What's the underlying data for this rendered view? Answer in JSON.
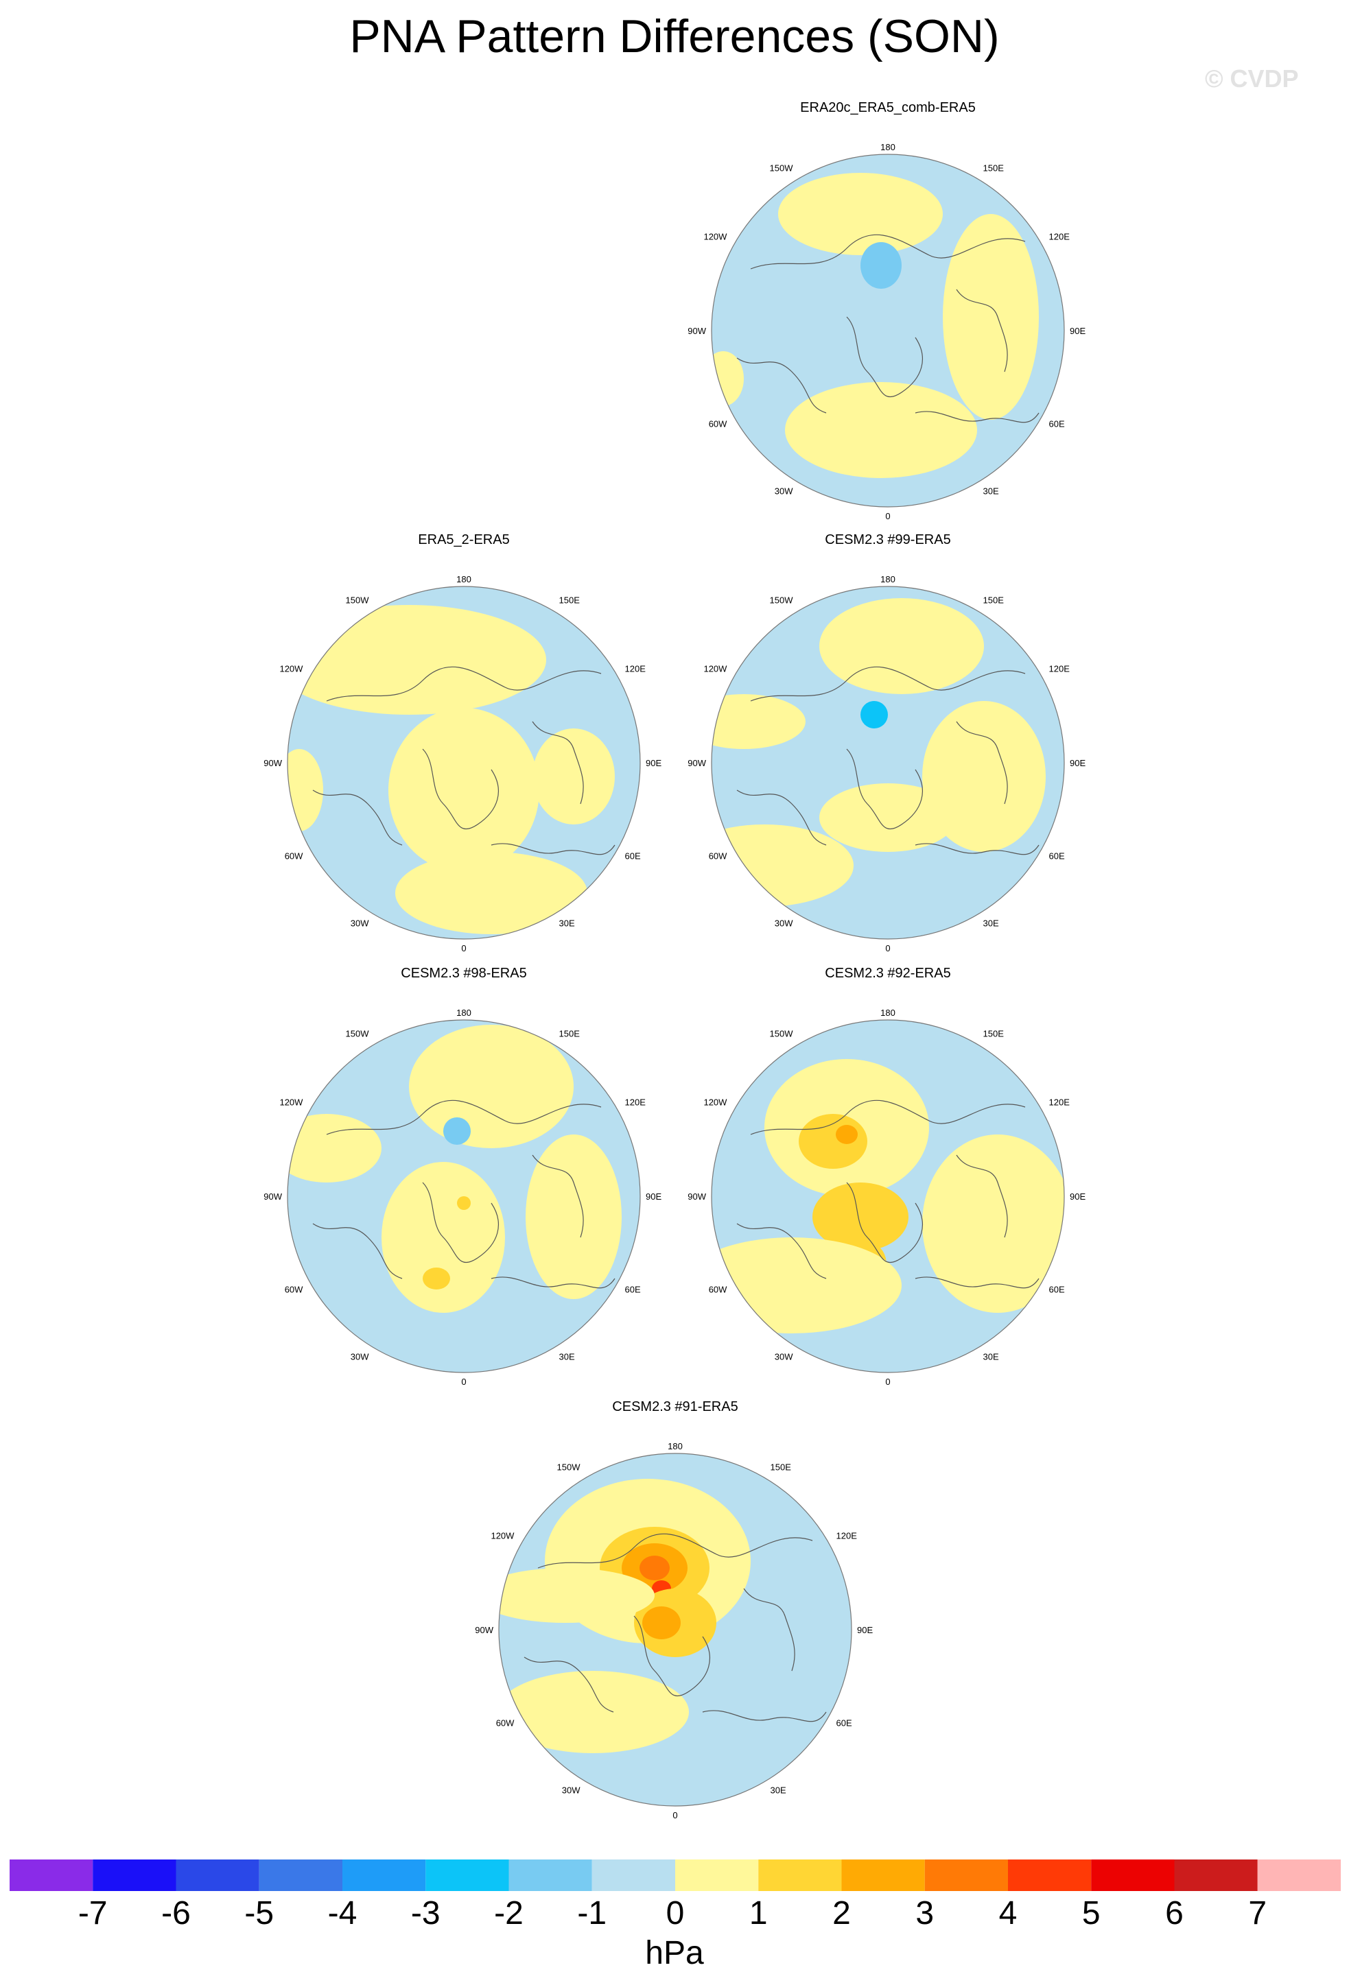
{
  "title": "PNA Pattern Differences (SON)",
  "watermark": "© CVDP",
  "panels": [
    {
      "title": "ERA20c_ERA5_comb-ERA5",
      "max_positive_level": 0,
      "min_negative_level": -2
    },
    {
      "title": "ERA5_2-ERA5",
      "max_positive_level": 0,
      "min_negative_level": -1
    },
    {
      "title": "CESM2.3 #99-ERA5",
      "max_positive_level": 0,
      "min_negative_level": -2
    },
    {
      "title": "CESM2.3 #98-ERA5",
      "max_positive_level": 1,
      "min_negative_level": -2
    },
    {
      "title": "CESM2.3 #92-ERA5",
      "max_positive_level": 2,
      "min_negative_level": -1
    },
    {
      "title": "CESM2.3 #91-ERA5",
      "max_positive_level": 4,
      "min_negative_level": -1
    }
  ],
  "longitude_labels": {
    "top": "180",
    "bottom": "0",
    "left": "90W",
    "right": "90E",
    "upper_left": "150W",
    "upper_right": "150E",
    "upper_left_mid": "120W",
    "upper_right_mid": "120E",
    "lower_left_mid": "60W",
    "lower_right_mid": "60E",
    "lower_left": "30W",
    "lower_right": "30E"
  },
  "colorbar": {
    "colors": [
      "#8a2be8",
      "#1a10f8",
      "#2a48e8",
      "#3a78e8",
      "#1e9cf8",
      "#0cc4f8",
      "#78cbf2",
      "#b8dff0",
      "#fff89a",
      "#ffd634",
      "#ffaa04",
      "#ff7a06",
      "#ff3a06",
      "#ec0202",
      "#cc1c1c",
      "#ffb5b5"
    ],
    "labels": [
      "-7",
      "-6",
      "-5",
      "-4",
      "-3",
      "-2",
      "-1",
      "0",
      "1",
      "2",
      "3",
      "4",
      "5",
      "6",
      "7"
    ],
    "units": "hPa"
  }
}
